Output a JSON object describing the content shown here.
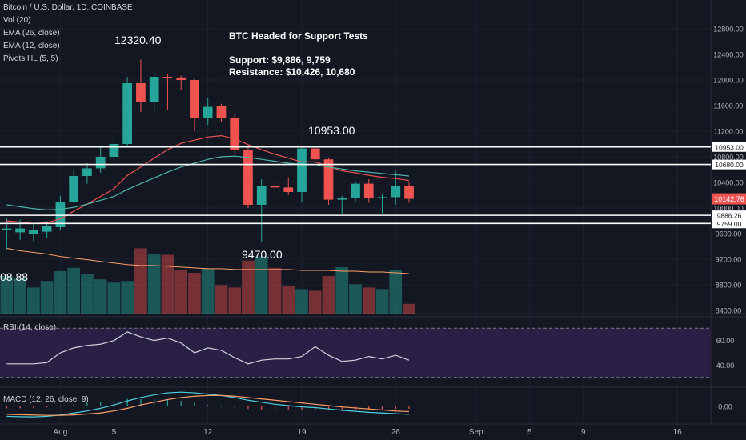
{
  "header": {
    "symbol_line": "Bitcoin / U.S. Dollar, 1D, COINBASE",
    "indicators": [
      "Vol (20)",
      "EMA (26, close)",
      "EMA (12, close)",
      "Pivots HL (5, 5)"
    ],
    "volume_value": "08.88",
    "rsi_label": "RSI (14, close)",
    "macd_label": "MACD (12, 26, close, 9)"
  },
  "notes": {
    "title": "BTC Headed for Support Tests",
    "support": "Support: $9,886, 9,759",
    "resistance": "Resistance: $10,426, 10,680"
  },
  "pivots": [
    {
      "label": "12320.40",
      "index": 9
    },
    {
      "label": "10953.00",
      "index": 22
    },
    {
      "label": "9470.00",
      "index": 18
    }
  ],
  "colors": {
    "background": "#131722",
    "up": "#26a69a",
    "down": "#ef5350",
    "ema_fast": "#ef5350",
    "ema_slow": "#4db6ac",
    "rsi_line": "#d1d4dc",
    "rsi_band": "#2a1f45",
    "macd_line": "#4dd0e1",
    "signal_line": "#ff9f67",
    "grid": "#1e2230",
    "level_line": "#ffffff",
    "price_tag": "#ef5350"
  },
  "chart_data": {
    "type": "candlestick",
    "price_axis": {
      "ticks": [
        "12800.00",
        "12400.00",
        "12000.00",
        "11600.00",
        "11200.00",
        "10800.00",
        "10400.00",
        "10000.00",
        "9600.00",
        "9200.00",
        "8800.00",
        "8400.00"
      ],
      "tick_values": [
        12800,
        12400,
        12000,
        11600,
        11200,
        10800,
        10400,
        10000,
        9600,
        9200,
        8800,
        8400
      ],
      "range": [
        8350,
        13250
      ]
    },
    "x_axis": {
      "ticks": [
        {
          "label": "Aug",
          "index": 4
        },
        {
          "label": "5",
          "index": 8
        },
        {
          "label": "12",
          "index": 15
        },
        {
          "label": "19",
          "index": 22
        },
        {
          "label": "26",
          "index": 29
        },
        {
          "label": "Sep",
          "index": 35
        },
        {
          "label": "5",
          "index": 39
        },
        {
          "label": "9",
          "index": 43
        },
        {
          "label": "16",
          "index": 50
        }
      ],
      "range": [
        -0.5,
        52.5
      ]
    },
    "candles": [
      {
        "o": 9650,
        "h": 9840,
        "l": 9350,
        "c": 9680
      },
      {
        "o": 9620,
        "h": 9820,
        "l": 9500,
        "c": 9680
      },
      {
        "o": 9600,
        "h": 9760,
        "l": 9480,
        "c": 9650
      },
      {
        "o": 9630,
        "h": 9800,
        "l": 9530,
        "c": 9720
      },
      {
        "o": 9700,
        "h": 10190,
        "l": 9660,
        "c": 10100
      },
      {
        "o": 10100,
        "h": 10600,
        "l": 10070,
        "c": 10500
      },
      {
        "o": 10500,
        "h": 10700,
        "l": 10380,
        "c": 10620
      },
      {
        "o": 10620,
        "h": 10950,
        "l": 10550,
        "c": 10800
      },
      {
        "o": 10800,
        "h": 11150,
        "l": 10750,
        "c": 11000
      },
      {
        "o": 11000,
        "h": 12050,
        "l": 10950,
        "c": 11950
      },
      {
        "o": 11950,
        "h": 12320,
        "l": 11500,
        "c": 11650
      },
      {
        "o": 11650,
        "h": 12150,
        "l": 11500,
        "c": 12050
      },
      {
        "o": 12050,
        "h": 12090,
        "l": 11530,
        "c": 12030
      },
      {
        "o": 12040,
        "h": 12070,
        "l": 11850,
        "c": 12000
      },
      {
        "o": 12000,
        "h": 12020,
        "l": 11200,
        "c": 11400
      },
      {
        "o": 11400,
        "h": 11720,
        "l": 11300,
        "c": 11580
      },
      {
        "o": 11590,
        "h": 11630,
        "l": 11350,
        "c": 11400
      },
      {
        "o": 11400,
        "h": 11480,
        "l": 10850,
        "c": 10900
      },
      {
        "o": 10900,
        "h": 10940,
        "l": 10000,
        "c": 10050
      },
      {
        "o": 10050,
        "h": 10450,
        "l": 9470,
        "c": 10350
      },
      {
        "o": 10350,
        "h": 10380,
        "l": 10000,
        "c": 10320
      },
      {
        "o": 10320,
        "h": 10480,
        "l": 10200,
        "c": 10250
      },
      {
        "o": 10250,
        "h": 10953,
        "l": 10100,
        "c": 10930
      },
      {
        "o": 10930,
        "h": 10953,
        "l": 10700,
        "c": 10760
      },
      {
        "o": 10760,
        "h": 10790,
        "l": 10050,
        "c": 10130
      },
      {
        "o": 10130,
        "h": 10190,
        "l": 9900,
        "c": 10150
      },
      {
        "o": 10150,
        "h": 10420,
        "l": 10100,
        "c": 10380
      },
      {
        "o": 10380,
        "h": 10450,
        "l": 10080,
        "c": 10150
      },
      {
        "o": 10150,
        "h": 10220,
        "l": 9920,
        "c": 10170
      },
      {
        "o": 10170,
        "h": 10580,
        "l": 10050,
        "c": 10350
      },
      {
        "o": 10350,
        "h": 10400,
        "l": 10080,
        "c": 10142.76
      }
    ],
    "ema_12": [
      9800,
      9780,
      9760,
      9770,
      9830,
      9950,
      10060,
      10180,
      10300,
      10510,
      10640,
      10780,
      10910,
      11010,
      11060,
      11110,
      11130,
      11080,
      10990,
      10910,
      10840,
      10780,
      10720,
      10720,
      10650,
      10580,
      10550,
      10510,
      10480,
      10460,
      10430
    ],
    "ema_26": [
      10050,
      10020,
      9990,
      9970,
      9980,
      10010,
      10060,
      10120,
      10180,
      10290,
      10380,
      10470,
      10560,
      10640,
      10700,
      10760,
      10800,
      10810,
      10790,
      10760,
      10730,
      10700,
      10680,
      10680,
      10640,
      10610,
      10580,
      10560,
      10540,
      10520,
      10500
    ],
    "levels": [
      {
        "label": "10953.00",
        "value": 10953
      },
      {
        "label": "10680.00",
        "value": 10680
      },
      {
        "label": "9886.26",
        "value": 9886
      },
      {
        "label": "9759.00",
        "value": 9759
      }
    ],
    "last_price": {
      "label": "10142.76",
      "value": 10142.76
    },
    "volume": [
      46,
      44,
      32,
      40,
      52,
      56,
      48,
      42,
      38,
      40,
      80,
      73,
      72,
      53,
      50,
      55,
      35,
      32,
      65,
      70,
      56,
      34,
      30,
      28,
      46,
      57,
      36,
      32,
      30,
      53,
      12
    ],
    "volume_ma": [
      80,
      77,
      75,
      73,
      70,
      68,
      66,
      64,
      62,
      60,
      59,
      59,
      58,
      57,
      56,
      55,
      55,
      54,
      54,
      54,
      54,
      54,
      53,
      53,
      53,
      52,
      52,
      51,
      51,
      50,
      49
    ],
    "volume_max": 100,
    "rsi": {
      "ticks": [
        "60.00",
        "40.00"
      ],
      "tick_values": [
        60,
        40
      ],
      "band": [
        30,
        70
      ],
      "range": [
        22,
        78
      ],
      "values": [
        41,
        41,
        41,
        42,
        50,
        54,
        56,
        57,
        60,
        67,
        63,
        60,
        62,
        58,
        50,
        54,
        52,
        46,
        41,
        44,
        45,
        45,
        47,
        55,
        48,
        43,
        44,
        47,
        45,
        48,
        44
      ]
    },
    "macd": {
      "ticks": [
        "0.00"
      ],
      "tick_values": [
        0
      ],
      "range": [
        -240,
        260
      ],
      "macd": [
        -150,
        -155,
        -158,
        -150,
        -130,
        -100,
        -70,
        -30,
        20,
        80,
        130,
        170,
        200,
        210,
        200,
        180,
        160,
        130,
        90,
        60,
        30,
        10,
        -10,
        -20,
        -40,
        -60,
        -75,
        -90,
        -100,
        -110,
        -120
      ],
      "signal": [
        -120,
        -125,
        -130,
        -135,
        -135,
        -128,
        -115,
        -100,
        -70,
        -30,
        20,
        60,
        100,
        130,
        150,
        160,
        160,
        150,
        130,
        110,
        90,
        70,
        50,
        30,
        10,
        -10,
        -25,
        -40,
        -55,
        -70,
        -80
      ]
    }
  }
}
